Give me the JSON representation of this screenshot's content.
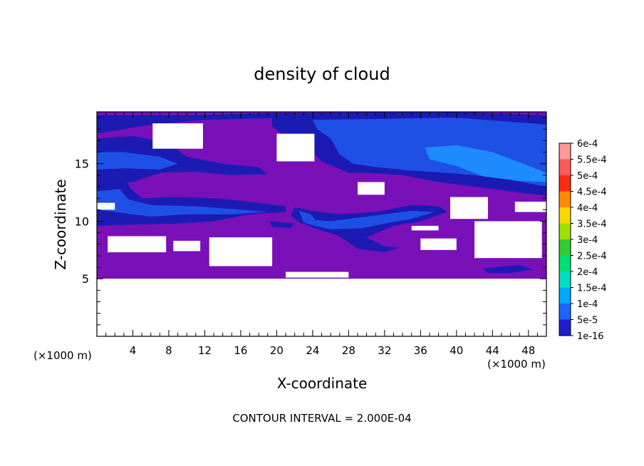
{
  "chart_data": {
    "type": "heatmap",
    "title": "density of cloud",
    "xlabel": "X-coordinate",
    "ylabel": "Z-coordinate",
    "x_unit_label": "(×1000 m)",
    "y_unit_label": "(×1000 m)",
    "footer": "CONTOUR INTERVAL = 2.000E-04",
    "xlim": [
      0,
      50
    ],
    "ylim": [
      0,
      19.5
    ],
    "x_ticks": [
      4,
      8,
      12,
      16,
      20,
      24,
      28,
      32,
      36,
      40,
      44,
      48
    ],
    "y_ticks": [
      5,
      10,
      15
    ],
    "colorbar": {
      "levels": [
        {
          "label": "6e-4",
          "color": "#ff9a9a"
        },
        {
          "label": "5.5e-4",
          "color": "#ff5a5a"
        },
        {
          "label": "5e-4",
          "color": "#ff2a14"
        },
        {
          "label": "4.5e-4",
          "color": "#ff8c00"
        },
        {
          "label": "4e-4",
          "color": "#ffd700"
        },
        {
          "label": "3.5e-4",
          "color": "#a0e000"
        },
        {
          "label": "3e-4",
          "color": "#32cd32"
        },
        {
          "label": "2.5e-4",
          "color": "#00e070"
        },
        {
          "label": "2e-4",
          "color": "#00e0c0"
        },
        {
          "label": "1.5e-4",
          "color": "#00a8ff"
        },
        {
          "label": "1e-4",
          "color": "#1e64ff"
        },
        {
          "label": "5e-5",
          "color": "#1e1ecc"
        },
        {
          "label": "1e-16",
          "color": "#7a10b8"
        }
      ]
    },
    "field_colors": {
      "background": "#7a10b8",
      "low": "#1b1bb4",
      "mid": "#1e50e6",
      "high": "#1e8cff",
      "empty": "#ffffff"
    },
    "cloud_extent_z": [
      5,
      19.5
    ],
    "empty_regions": [
      {
        "x": [
          0,
          50
        ],
        "z": [
          0,
          5
        ]
      },
      {
        "x": [
          6.2,
          11.8
        ],
        "z": [
          16.3,
          18.5
        ]
      },
      {
        "x": [
          20,
          24.2
        ],
        "z": [
          15.2,
          17.6
        ]
      },
      {
        "x": [
          29,
          32
        ],
        "z": [
          12.3,
          13.4
        ]
      },
      {
        "x": [
          0,
          2
        ],
        "z": [
          11.0,
          11.6
        ]
      },
      {
        "x": [
          39.3,
          43.5
        ],
        "z": [
          10.2,
          12.1
        ]
      },
      {
        "x": [
          46.5,
          50
        ],
        "z": [
          10.8,
          11.7
        ]
      },
      {
        "x": [
          1.2,
          7.7
        ],
        "z": [
          7.3,
          8.7
        ]
      },
      {
        "x": [
          8.5,
          11.5
        ],
        "z": [
          7.4,
          8.3
        ]
      },
      {
        "x": [
          12.5,
          19.5
        ],
        "z": [
          6.1,
          8.6
        ]
      },
      {
        "x": [
          36,
          40
        ],
        "z": [
          7.5,
          8.5
        ]
      },
      {
        "x": [
          42,
          49.5
        ],
        "z": [
          6.8,
          10.0
        ]
      },
      {
        "x": [
          35,
          38
        ],
        "z": [
          9.2,
          9.6
        ]
      },
      {
        "x": [
          21,
          28
        ],
        "z": [
          5.1,
          5.6
        ]
      }
    ],
    "cloud_regions": [
      {
        "level": "low",
        "points": [
          [
            0,
            19.2
          ],
          [
            10,
            19.2
          ],
          [
            20,
            19.4
          ],
          [
            40,
            19.5
          ],
          [
            50,
            19.2
          ],
          [
            50,
            17.5
          ],
          [
            40,
            18.5
          ],
          [
            30,
            18.8
          ],
          [
            22,
            19.0
          ],
          [
            12,
            18.8
          ],
          [
            6,
            18.4
          ],
          [
            0,
            17.6
          ]
        ]
      },
      {
        "level": "low",
        "points": [
          [
            0,
            17.2
          ],
          [
            4,
            17.4
          ],
          [
            8,
            16.8
          ],
          [
            10,
            15.6
          ],
          [
            14,
            15.0
          ],
          [
            18,
            14.7
          ],
          [
            19,
            14.1
          ],
          [
            15,
            14.0
          ],
          [
            11,
            14.3
          ],
          [
            7,
            14.2
          ],
          [
            4,
            13.4
          ],
          [
            0,
            13.0
          ]
        ]
      },
      {
        "level": "mid",
        "points": [
          [
            0,
            16.0
          ],
          [
            3,
            16.0
          ],
          [
            7,
            15.6
          ],
          [
            9,
            15.0
          ],
          [
            7,
            14.5
          ],
          [
            3,
            14.6
          ],
          [
            0,
            14.5
          ]
        ]
      },
      {
        "level": "low",
        "points": [
          [
            0,
            13.6
          ],
          [
            3,
            13.8
          ],
          [
            3.8,
            12.8
          ],
          [
            5,
            12.0
          ],
          [
            9,
            12.1
          ],
          [
            13,
            12.0
          ],
          [
            17,
            11.7
          ],
          [
            21,
            11.3
          ],
          [
            21,
            10.8
          ],
          [
            17,
            10.6
          ],
          [
            13,
            10.0
          ],
          [
            9,
            9.8
          ],
          [
            4,
            9.7
          ],
          [
            0,
            9.6
          ]
        ]
      },
      {
        "level": "mid",
        "points": [
          [
            0,
            12.6
          ],
          [
            2.5,
            12.8
          ],
          [
            3.5,
            11.9
          ],
          [
            6,
            11.4
          ],
          [
            11,
            11.3
          ],
          [
            16,
            11.0
          ],
          [
            19,
            10.8
          ],
          [
            15,
            10.6
          ],
          [
            10,
            10.6
          ],
          [
            6,
            10.4
          ],
          [
            2,
            10.8
          ],
          [
            0,
            11.0
          ]
        ]
      },
      {
        "level": "low",
        "points": [
          [
            19.5,
            19.0
          ],
          [
            30,
            19.2
          ],
          [
            40,
            19.3
          ],
          [
            50,
            19.0
          ],
          [
            50,
            12.2
          ],
          [
            46,
            12.6
          ],
          [
            42,
            13.0
          ],
          [
            38,
            13.4
          ],
          [
            34,
            14.0
          ],
          [
            30,
            14.2
          ],
          [
            28,
            14.2
          ],
          [
            25,
            15.2
          ],
          [
            23,
            16.8
          ],
          [
            21,
            17.4
          ],
          [
            19.5,
            18.2
          ]
        ]
      },
      {
        "level": "mid",
        "points": [
          [
            24,
            18.8
          ],
          [
            32,
            18.9
          ],
          [
            40,
            19.0
          ],
          [
            50,
            18.4
          ],
          [
            50,
            13.0
          ],
          [
            46,
            13.6
          ],
          [
            42,
            14.0
          ],
          [
            39,
            14.2
          ],
          [
            35,
            14.4
          ],
          [
            31,
            14.7
          ],
          [
            28.5,
            15.0
          ],
          [
            27,
            15.8
          ],
          [
            26,
            17.2
          ],
          [
            24.5,
            18.0
          ]
        ]
      },
      {
        "level": "high",
        "points": [
          [
            36.5,
            16.4
          ],
          [
            40,
            16.6
          ],
          [
            44,
            16.0
          ],
          [
            48,
            14.8
          ],
          [
            50,
            14.2
          ],
          [
            50,
            13.4
          ],
          [
            47,
            13.5
          ],
          [
            43,
            13.9
          ],
          [
            40,
            14.8
          ],
          [
            37,
            15.4
          ]
        ]
      },
      {
        "level": "low",
        "points": [
          [
            22,
            11.2
          ],
          [
            24,
            10.9
          ],
          [
            27,
            10.6
          ],
          [
            31,
            10.8
          ],
          [
            35,
            11.4
          ],
          [
            38,
            11.3
          ],
          [
            39,
            10.8
          ],
          [
            36,
            10.0
          ],
          [
            33,
            9.6
          ],
          [
            30,
            8.6
          ],
          [
            32,
            7.8
          ],
          [
            33.6,
            7.7
          ],
          [
            32,
            7.3
          ],
          [
            29,
            7.6
          ],
          [
            27,
            8.7
          ],
          [
            25,
            9.2
          ],
          [
            23.5,
            9.6
          ],
          [
            22.3,
            10.0
          ],
          [
            21.6,
            10.5
          ]
        ]
      },
      {
        "level": "mid",
        "points": [
          [
            22.5,
            10.9
          ],
          [
            23.8,
            10.6
          ],
          [
            24.3,
            10.1
          ],
          [
            26,
            10.0
          ],
          [
            29,
            10.3
          ],
          [
            32,
            10.6
          ],
          [
            35,
            10.9
          ],
          [
            37.5,
            10.8
          ],
          [
            35,
            10.2
          ],
          [
            32,
            9.8
          ],
          [
            29.5,
            9.4
          ],
          [
            26,
            9.3
          ],
          [
            24.2,
            9.6
          ],
          [
            23,
            9.9
          ]
        ]
      },
      {
        "level": "low",
        "points": [
          [
            13.5,
            7.3
          ],
          [
            15,
            7.8
          ],
          [
            17,
            7.6
          ],
          [
            18,
            7.0
          ],
          [
            17,
            6.5
          ],
          [
            15,
            6.6
          ]
        ]
      },
      {
        "level": "low",
        "points": [
          [
            19.2,
            10.0
          ],
          [
            22,
            9.8
          ],
          [
            21.5,
            9.4
          ],
          [
            19.5,
            9.5
          ]
        ]
      },
      {
        "level": "low",
        "points": [
          [
            43,
            5.9
          ],
          [
            47,
            6.2
          ],
          [
            48.5,
            5.8
          ],
          [
            46,
            5.5
          ],
          [
            43.5,
            5.5
          ]
        ]
      }
    ]
  }
}
